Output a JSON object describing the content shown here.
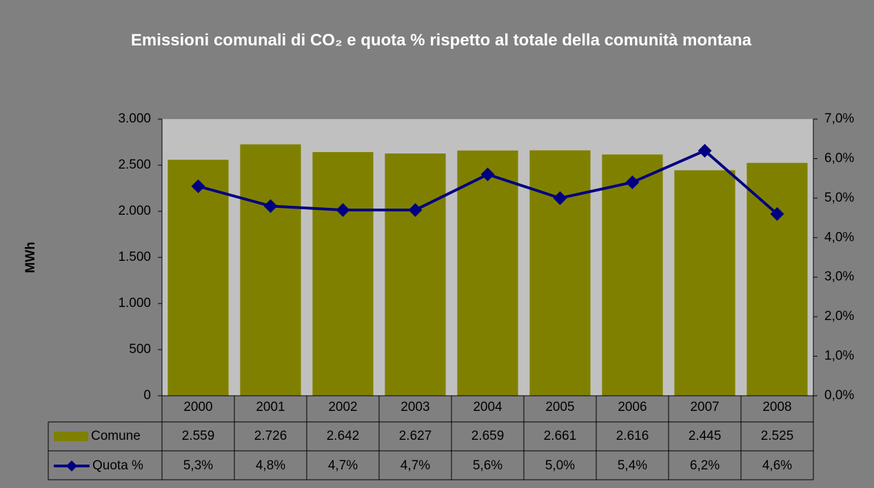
{
  "chart_data": {
    "type": "bar_line",
    "title": "Emissioni comunali di CO₂ e quota % rispetto al totale della comunità montana",
    "ylabel": "MWh",
    "categories": [
      "2000",
      "2001",
      "2002",
      "2003",
      "2004",
      "2005",
      "2006",
      "2007",
      "2008"
    ],
    "series": [
      {
        "name": "Comune",
        "type": "bar",
        "color": "#808000",
        "values": [
          2559,
          2726,
          2642,
          2627,
          2659,
          2661,
          2616,
          2445,
          2525
        ],
        "value_labels": [
          "2.559",
          "2.726",
          "2.642",
          "2.627",
          "2.659",
          "2.661",
          "2.616",
          "2.445",
          "2.525"
        ]
      },
      {
        "name": "Quota %",
        "type": "line",
        "axis": "y2",
        "color": "#000080",
        "values": [
          5.3,
          4.8,
          4.7,
          4.7,
          5.6,
          5.0,
          5.4,
          6.2,
          4.6
        ],
        "value_labels": [
          "5,3%",
          "4,8%",
          "4,7%",
          "4,7%",
          "5,6%",
          "5,0%",
          "5,4%",
          "6,2%",
          "4,6%"
        ]
      }
    ],
    "ylim": [
      0,
      3000
    ],
    "yticks": [
      0,
      500,
      {
        "value": 1000,
        "label": "1.000"
      },
      {
        "value": 1500,
        "label": "1.500"
      },
      {
        "value": 2000,
        "label": "2.000"
      },
      {
        "value": 2500,
        "label": "2.500"
      },
      {
        "value": 3000,
        "label": "3.000"
      }
    ],
    "y2lim": [
      0,
      7
    ],
    "y2ticks": [
      {
        "value": 0,
        "label": "0,0%"
      },
      {
        "value": 1,
        "label": "1,0%"
      },
      {
        "value": 2,
        "label": "2,0%"
      },
      {
        "value": 3,
        "label": "3,0%"
      },
      {
        "value": 4,
        "label": "4,0%"
      },
      {
        "value": 5,
        "label": "5,0%"
      },
      {
        "value": 6,
        "label": "6,0%"
      },
      {
        "value": 7,
        "label": "7,0%"
      }
    ],
    "data_table": true
  }
}
